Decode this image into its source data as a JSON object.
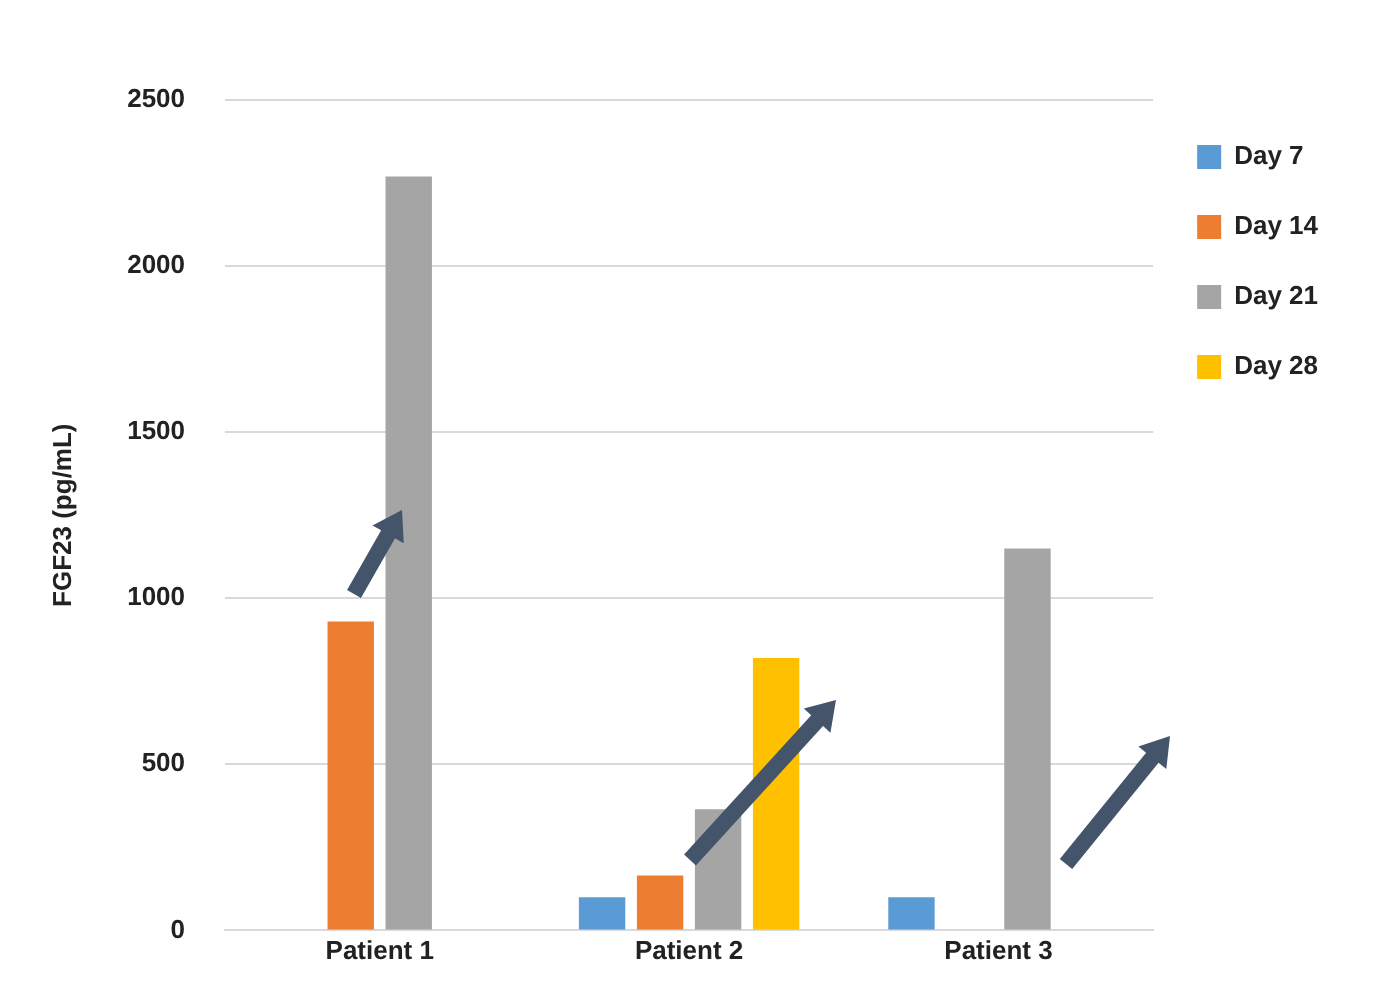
{
  "chart_data": {
    "type": "bar",
    "ylabel": "FGF23 (pg/mL)",
    "categories": [
      "Patient 1",
      "Patient 2",
      "Patient 3"
    ],
    "series": [
      {
        "name": "Day 7",
        "color": "#5b9bd5",
        "values": [
          null,
          100,
          100
        ]
      },
      {
        "name": "Day 14",
        "color": "#ed7d31",
        "values": [
          930,
          165,
          null
        ]
      },
      {
        "name": "Day 21",
        "color": "#a5a5a5",
        "values": [
          2270,
          365,
          1150
        ]
      },
      {
        "name": "Day 28",
        "color": "#ffc000",
        "values": [
          null,
          820,
          null
        ]
      }
    ],
    "ylim": [
      0,
      2500
    ],
    "yticks": [
      0,
      500,
      1000,
      1500,
      2000,
      2500
    ],
    "grid": "y",
    "legend": "top right"
  }
}
